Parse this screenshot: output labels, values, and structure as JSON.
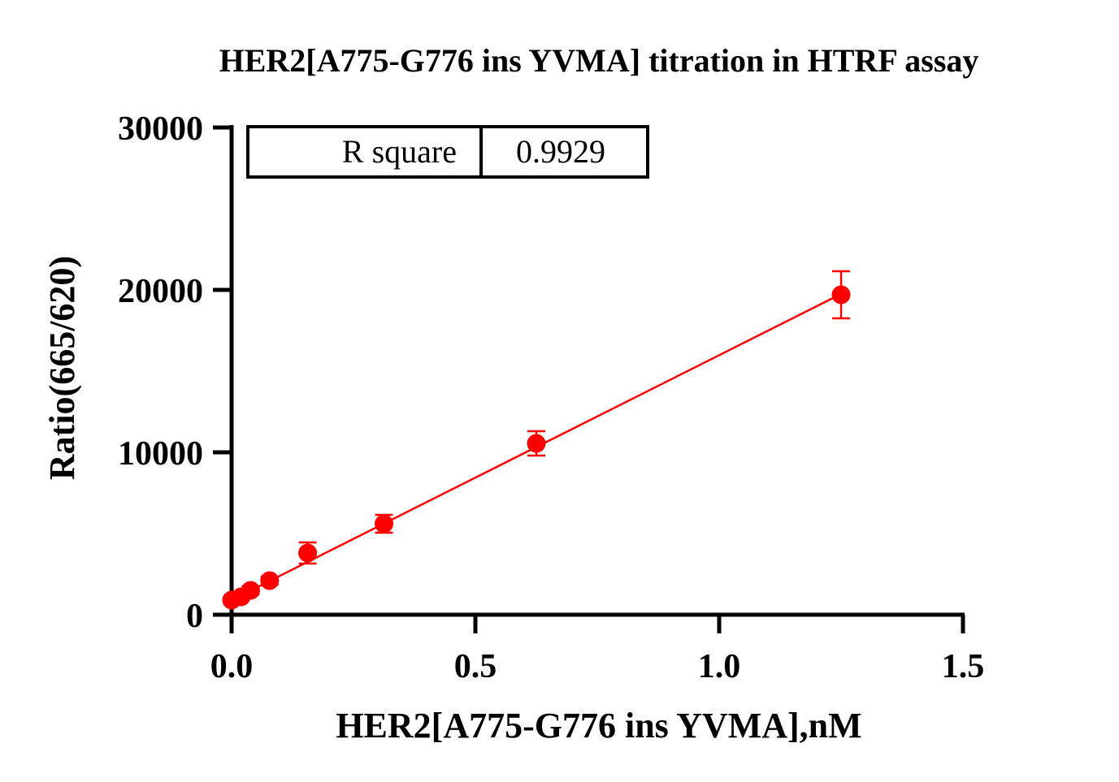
{
  "chart_data": {
    "type": "scatter",
    "title": "HER2[A775-G776 ins YVMA] titration in HTRF assay",
    "xlabel": "HER2[A775-G776 ins YVMA],nM",
    "ylabel": "Ratio(665/620)",
    "xlim": [
      0,
      1.5
    ],
    "ylim": [
      0,
      30000
    ],
    "x_ticks": [
      "0.0",
      "0.5",
      "1.0",
      "1.5"
    ],
    "y_ticks": [
      "0",
      "10000",
      "20000",
      "30000"
    ],
    "grid": false,
    "series": [
      {
        "color": "#ff0000",
        "x": [
          0.0,
          0.0195,
          0.039,
          0.078,
          0.156,
          0.3125,
          0.625,
          1.25
        ],
        "y": [
          900,
          1100,
          1500,
          2100,
          3800,
          5600,
          10550,
          19700
        ],
        "error": [
          150,
          200,
          250,
          250,
          650,
          550,
          750,
          1450
        ]
      }
    ],
    "fit_line": {
      "x": [
        0.0,
        1.25
      ],
      "y": [
        900,
        19750
      ]
    },
    "annotation": {
      "label": "R square",
      "value": "0.9929"
    }
  }
}
